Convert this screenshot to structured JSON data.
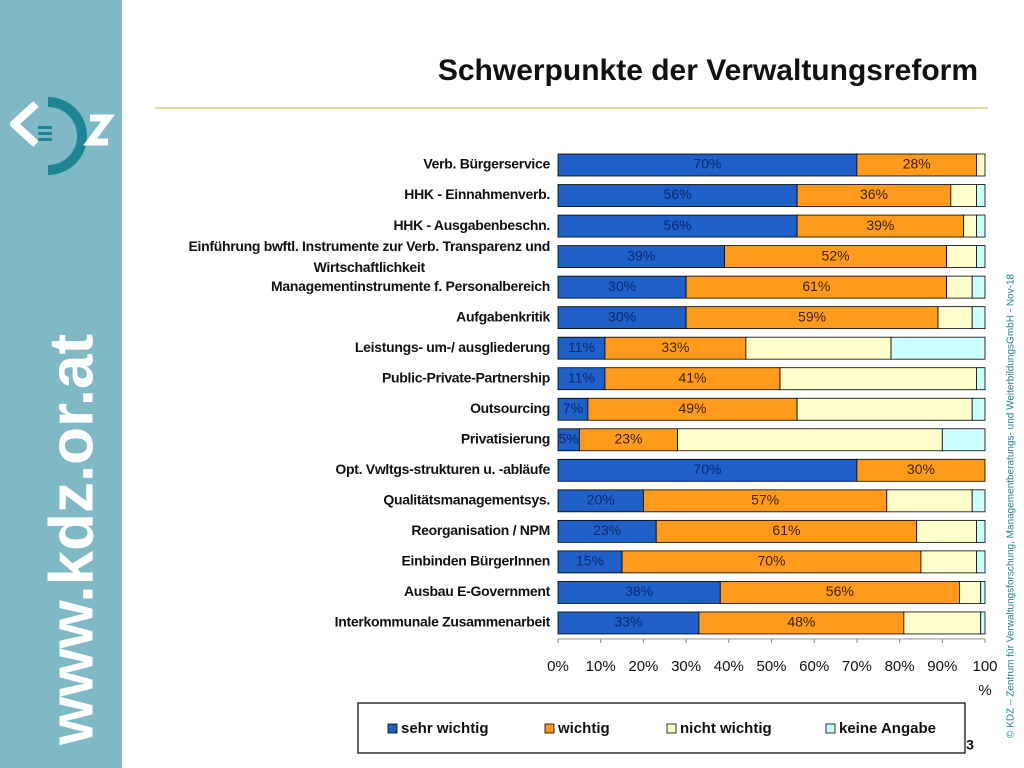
{
  "slide": {
    "title": "Schwerpunkte der Verwaltungsreform",
    "sidebar_url": "www.kdz.or.at",
    "copyright": "© KDZ – Zentrum für Verwaltungsforschung, Managementberatungs- und WeiterbildungsGmbH - Nov-18",
    "page_number": "3"
  },
  "chart_data": {
    "type": "stacked_barh",
    "categories": [
      "Verb. Bürgerservice",
      "HHK - Einnahmenverb.",
      "HHK - Ausgabenbeschn.",
      "Einführung bwftl. Instrumente zur Verb. Transparenz und Wirtschaftlichkeit",
      "Managementinstrumente f. Personalbereich",
      "Aufgabenkritik",
      "Leistungs- um-/ ausgliederung",
      "Public-Private-Partnership",
      "Outsourcing",
      "Privatisierung",
      "Opt. Vwltgs-strukturen u. -abläufe",
      "Qualitätsmanagementsys.",
      "Reorganisation / NPM",
      "Einbinden BürgerInnen",
      "Ausbau E-Government",
      "Interkommunale Zusammenarbeit"
    ],
    "series": [
      {
        "name": "sehr wichtig",
        "color": "#1f5fc8",
        "values": [
          70,
          56,
          56,
          39,
          30,
          30,
          11,
          11,
          7,
          5,
          70,
          20,
          23,
          15,
          38,
          33
        ],
        "value_labels": [
          "70%",
          "56%",
          "56%",
          "39%",
          "30%",
          "30%",
          "11%",
          "11%",
          "7%",
          "5%",
          "70%",
          "20%",
          "23%",
          "15%",
          "38%",
          "33%"
        ]
      },
      {
        "name": "wichtig",
        "color": "#ff9a1a",
        "values": [
          28,
          36,
          39,
          52,
          61,
          59,
          33,
          41,
          49,
          23,
          30,
          57,
          61,
          70,
          56,
          48
        ],
        "value_labels": [
          "28%",
          "36%",
          "39%",
          "52%",
          "61%",
          "59%",
          "33%",
          "41%",
          "49%",
          "23%",
          "30%",
          "57%",
          "61%",
          "70%",
          "56%",
          "48%"
        ]
      },
      {
        "name": "nicht wichtig",
        "color": "#ffffcc",
        "values": [
          2,
          6,
          3,
          7,
          6,
          8,
          34,
          46,
          41,
          62,
          0,
          20,
          14,
          13,
          5,
          18
        ]
      },
      {
        "name": "keine Angabe",
        "color": "#ccffff",
        "values": [
          0,
          2,
          2,
          2,
          3,
          3,
          22,
          2,
          3,
          10,
          0,
          3,
          2,
          2,
          1,
          1
        ]
      }
    ],
    "xlim": [
      0,
      100
    ],
    "xticks": [
      {
        "value": 0,
        "label": "0%"
      },
      {
        "value": 10,
        "label": "10%"
      },
      {
        "value": 20,
        "label": "20%"
      },
      {
        "value": 30,
        "label": "30%"
      },
      {
        "value": 40,
        "label": "40%"
      },
      {
        "value": 50,
        "label": "50%"
      },
      {
        "value": 60,
        "label": "60%"
      },
      {
        "value": 70,
        "label": "70%"
      },
      {
        "value": 80,
        "label": "80%"
      },
      {
        "value": 90,
        "label": "90%"
      },
      {
        "value": 100,
        "label": "100 %"
      }
    ],
    "legend": "bottom"
  }
}
